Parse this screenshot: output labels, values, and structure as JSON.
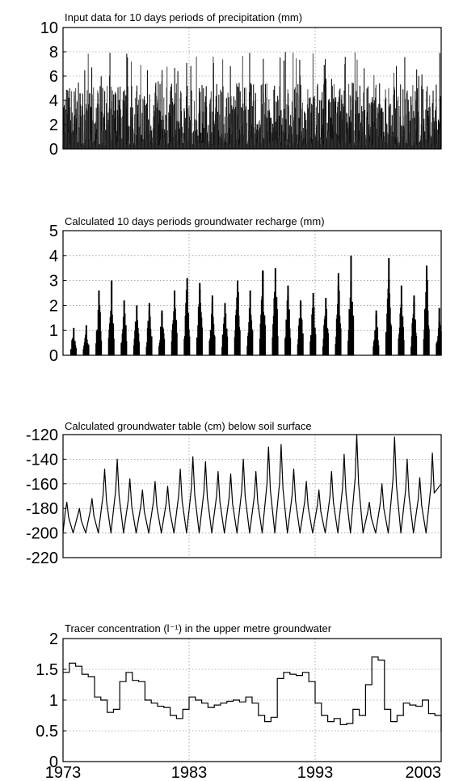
{
  "chart_data": [
    {
      "type": "bar",
      "title": "Input data for 10 days periods of precipitation (mm)",
      "xlabel": "",
      "ylabel": "",
      "xlim": [
        1973,
        2003
      ],
      "ylim": [
        0,
        10
      ],
      "yticks": [
        0,
        2,
        4,
        6,
        8,
        10
      ],
      "ytick_labels": [
        "0",
        "2",
        "4",
        "6",
        "8",
        "10"
      ],
      "grid": true,
      "style": "dense bars, 10-day periods",
      "summary": {
        "typical_range": [
          0.5,
          5
        ],
        "peak_max": 8
      }
    },
    {
      "type": "area",
      "title": "Calculated 10 days periods groundwater recharge (mm)",
      "xlabel": "",
      "ylabel": "",
      "xlim": [
        1973,
        2003
      ],
      "ylim": [
        0,
        5
      ],
      "yticks": [
        0,
        1,
        2,
        3,
        4,
        5
      ],
      "ytick_labels": [
        "0",
        "1",
        "2",
        "3",
        "4",
        "5"
      ],
      "grid": true,
      "annual_peaks": [
        {
          "x": 1974,
          "y": 1.1
        },
        {
          "x": 1975,
          "y": 1.2
        },
        {
          "x": 1976,
          "y": 2.6
        },
        {
          "x": 1977,
          "y": 3.0
        },
        {
          "x": 1978,
          "y": 2.2
        },
        {
          "x": 1979,
          "y": 2.0
        },
        {
          "x": 1980,
          "y": 2.1
        },
        {
          "x": 1981,
          "y": 1.8
        },
        {
          "x": 1982,
          "y": 2.6
        },
        {
          "x": 1983,
          "y": 3.1
        },
        {
          "x": 1984,
          "y": 2.9
        },
        {
          "x": 1985,
          "y": 2.4
        },
        {
          "x": 1986,
          "y": 2.1
        },
        {
          "x": 1987,
          "y": 3.0
        },
        {
          "x": 1988,
          "y": 2.6
        },
        {
          "x": 1989,
          "y": 3.4
        },
        {
          "x": 1990,
          "y": 3.5
        },
        {
          "x": 1991,
          "y": 2.8
        },
        {
          "x": 1992,
          "y": 2.2
        },
        {
          "x": 1993,
          "y": 2.5
        },
        {
          "x": 1994,
          "y": 2.3
        },
        {
          "x": 1995,
          "y": 3.3
        },
        {
          "x": 1996,
          "y": 4.0
        },
        {
          "x": 1998,
          "y": 1.8
        },
        {
          "x": 1999,
          "y": 3.9
        },
        {
          "x": 2000,
          "y": 2.8
        },
        {
          "x": 2001,
          "y": 2.4
        },
        {
          "x": 2002,
          "y": 3.6
        },
        {
          "x": 2003,
          "y": 1.9
        }
      ]
    },
    {
      "type": "line",
      "title": "Calculated groundwater table (cm) below soil surface",
      "xlabel": "",
      "ylabel": "",
      "xlim": [
        1973,
        2003
      ],
      "ylim": [
        -220,
        -120
      ],
      "yticks": [
        -220,
        -200,
        -180,
        -160,
        -140,
        -120
      ],
      "ytick_labels": [
        "-220",
        "-200",
        "-180",
        "-160",
        "-140",
        "-120"
      ],
      "grid": true,
      "annual_peaks": [
        {
          "x": 1973.3,
          "y": -175
        },
        {
          "x": 1974.3,
          "y": -180
        },
        {
          "x": 1975.3,
          "y": -172
        },
        {
          "x": 1976.3,
          "y": -148
        },
        {
          "x": 1977.3,
          "y": -140
        },
        {
          "x": 1978.3,
          "y": -156
        },
        {
          "x": 1979.3,
          "y": -165
        },
        {
          "x": 1980.3,
          "y": -158
        },
        {
          "x": 1981.3,
          "y": -162
        },
        {
          "x": 1982.3,
          "y": -148
        },
        {
          "x": 1983.3,
          "y": -138
        },
        {
          "x": 1984.3,
          "y": -142
        },
        {
          "x": 1985.3,
          "y": -150
        },
        {
          "x": 1986.3,
          "y": -152
        },
        {
          "x": 1987.3,
          "y": -140
        },
        {
          "x": 1988.3,
          "y": -150
        },
        {
          "x": 1989.3,
          "y": -130
        },
        {
          "x": 1990.3,
          "y": -128
        },
        {
          "x": 1991.3,
          "y": -148
        },
        {
          "x": 1992.3,
          "y": -158
        },
        {
          "x": 1993.3,
          "y": -165
        },
        {
          "x": 1994.3,
          "y": -150
        },
        {
          "x": 1995.3,
          "y": -136
        },
        {
          "x": 1996.3,
          "y": -120
        },
        {
          "x": 1997.3,
          "y": -175
        },
        {
          "x": 1998.3,
          "y": -160
        },
        {
          "x": 1999.3,
          "y": -122
        },
        {
          "x": 2000.3,
          "y": -140
        },
        {
          "x": 2001.3,
          "y": -155
        },
        {
          "x": 2002.3,
          "y": -135
        }
      ],
      "trough_level": -200
    },
    {
      "type": "line",
      "title": "Tracer concentration (l⁻¹) in the upper metre groundwater",
      "xlabel": "",
      "ylabel": "",
      "xlim": [
        1973,
        2003
      ],
      "ylim": [
        0,
        2
      ],
      "yticks": [
        0,
        0.5,
        1,
        1.5,
        2
      ],
      "ytick_labels": [
        "0",
        "0.5",
        "1",
        "1.5",
        "2"
      ],
      "xticks": [
        1973,
        1983,
        1993,
        2003
      ],
      "xtick_labels": [
        "1973",
        "1983",
        "1993",
        "2003"
      ],
      "grid": true,
      "series": [
        {
          "x": [
            1973,
            1973.5,
            1974,
            1974.5,
            1975,
            1975.5,
            1976,
            1976.5,
            1977,
            1977.5,
            1978,
            1978.5,
            1979,
            1979.5,
            1980,
            1980.5,
            1981,
            1981.5,
            1982,
            1982.5,
            1983,
            1983.5,
            1984,
            1984.5,
            1985,
            1985.5,
            1986,
            1986.5,
            1987,
            1987.5,
            1988,
            1988.5,
            1989,
            1989.5,
            1990,
            1990.5,
            1991,
            1991.5,
            1992,
            1992.5,
            1993,
            1993.5,
            1994,
            1994.5,
            1995,
            1995.5,
            1996,
            1996.5,
            1997,
            1997.5,
            1998,
            1998.5,
            1999,
            1999.5,
            2000,
            2000.5,
            2001,
            2001.5,
            2002,
            2002.5,
            2003
          ],
          "y": [
            1.45,
            1.6,
            1.55,
            1.42,
            1.38,
            1.05,
            1.0,
            0.8,
            0.85,
            1.3,
            1.45,
            1.32,
            1.3,
            1.0,
            0.95,
            0.9,
            0.88,
            0.75,
            0.7,
            0.85,
            1.05,
            1.0,
            0.95,
            0.88,
            0.92,
            0.95,
            0.98,
            1.0,
            0.97,
            1.05,
            0.95,
            0.75,
            0.65,
            0.72,
            1.35,
            1.45,
            1.42,
            1.4,
            1.45,
            1.3,
            0.95,
            0.75,
            0.65,
            0.7,
            0.6,
            0.62,
            0.85,
            0.75,
            1.25,
            1.7,
            1.65,
            0.85,
            0.65,
            0.75,
            0.95,
            0.92,
            0.9,
            1.0,
            0.78,
            0.75,
            0.48
          ]
        }
      ]
    }
  ]
}
